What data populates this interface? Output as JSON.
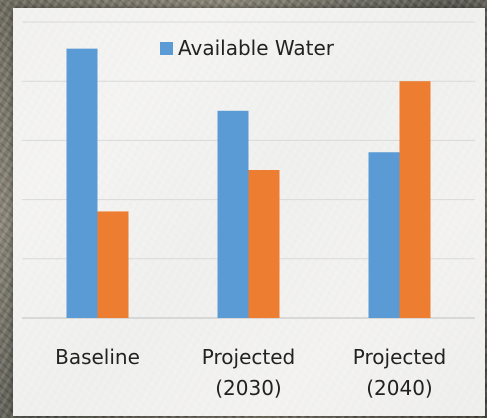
{
  "chart_data": {
    "type": "bar",
    "categories": [
      [
        "Baseline"
      ],
      [
        "Projected",
        "(2030)"
      ],
      [
        "Projected",
        "(2040)"
      ]
    ],
    "series": [
      {
        "name": "Available Water",
        "color": "#5B9BD5",
        "values": [
          4.55,
          3.5,
          2.8
        ]
      },
      {
        "name": "",
        "color": "#ED7D31",
        "values": [
          1.8,
          2.5,
          4.0
        ]
      }
    ],
    "ylim": [
      0,
      5
    ],
    "gridlines": true,
    "legend": "top-center",
    "title": "",
    "xlabel": "",
    "ylabel": ""
  }
}
